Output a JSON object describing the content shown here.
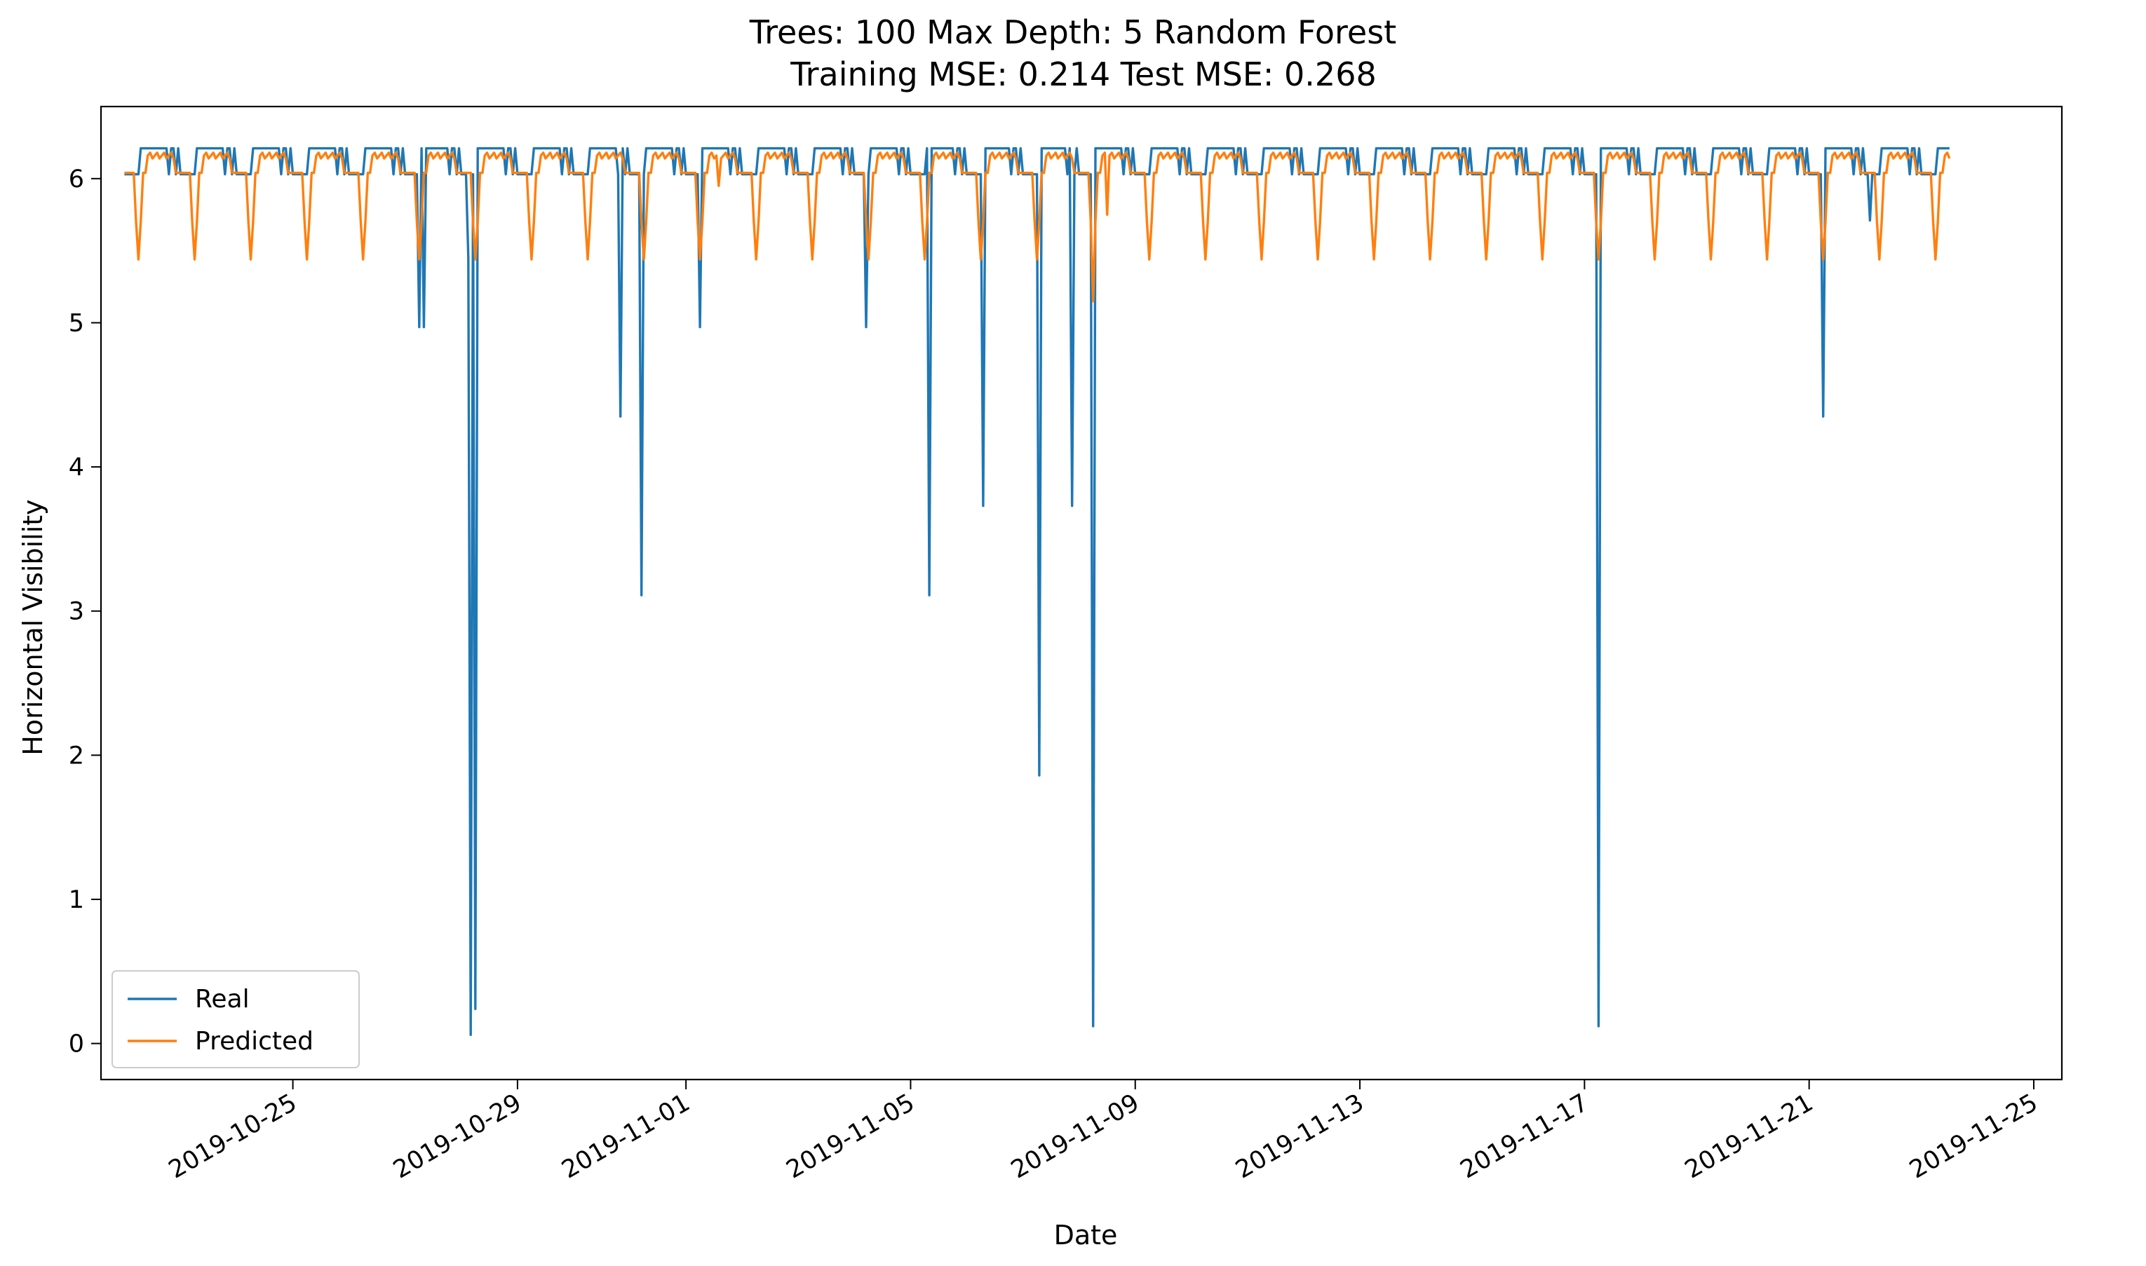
{
  "chart_data": {
    "type": "line",
    "title": "Trees: 100 Max Depth: 5 Random Forest",
    "subtitle": "Training MSE: 0.214 Test MSE: 0.268",
    "xlabel": "Date",
    "ylabel": "Horizontal Visibility",
    "x_range": [
      "2019-10-21T14:00",
      "2019-11-25T12:00"
    ],
    "ylim": [
      -0.25,
      6.5
    ],
    "x_ticks": [
      "2019-10-25",
      "2019-10-29",
      "2019-11-01",
      "2019-11-05",
      "2019-11-09",
      "2019-11-13",
      "2019-11-17",
      "2019-11-21",
      "2019-11-25"
    ],
    "y_ticks": [
      0,
      1,
      2,
      3,
      4,
      5,
      6
    ],
    "grid": false,
    "legend": "lower-left",
    "series": [
      {
        "name": "Real",
        "color": "#1f77b4",
        "base": 6.21,
        "low": 6.03,
        "cycle_hours": 24,
        "low_phase_hours": [
          0,
          6
        ],
        "spikes": [
          [
            "2019-10-27T06:00",
            4.97
          ],
          [
            "2019-10-27T08:00",
            4.97
          ],
          [
            "2019-10-28T03:00",
            5.45
          ],
          [
            "2019-10-28T04:00",
            0.06
          ],
          [
            "2019-10-28T06:00",
            0.24
          ],
          [
            "2019-10-30T20:00",
            4.35
          ],
          [
            "2019-10-31T05:00",
            3.11
          ],
          [
            "2019-11-01T06:00",
            4.97
          ],
          [
            "2019-11-04T05:00",
            4.97
          ],
          [
            "2019-11-05T08:00",
            3.11
          ],
          [
            "2019-11-06T07:00",
            3.73
          ],
          [
            "2019-11-07T07:00",
            1.86
          ],
          [
            "2019-11-07T21:00",
            3.73
          ],
          [
            "2019-11-08T06:00",
            0.12
          ],
          [
            "2019-11-17T06:00",
            0.12
          ],
          [
            "2019-11-21T06:00",
            4.35
          ],
          [
            "2019-11-22T02:00",
            5.71
          ]
        ]
      },
      {
        "name": "Predicted",
        "color": "#ff7f0e",
        "base": 6.16,
        "low": 6.04,
        "dip_value": 5.44,
        "cycle_hours": 24,
        "dips_hour": 6,
        "extra_points": [
          [
            "2019-11-08T06:00",
            5.15
          ],
          [
            "2019-11-08T12:00",
            5.75
          ],
          [
            "2019-11-01T14:00",
            5.95
          ]
        ]
      }
    ]
  }
}
